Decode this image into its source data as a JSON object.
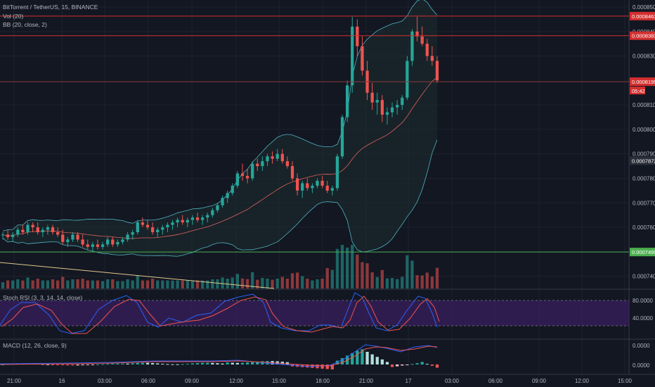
{
  "header": {
    "title": "BitTorrent / TetherUS, 15, BINANCE",
    "vol_label": "Vol (20)",
    "bb_label": "BB (20, close, 2)",
    "stoch_label": "Stoch RSI (3, 3, 14, 14, close)",
    "macd_label": "MACD (12, 26, close, 9)"
  },
  "colors": {
    "background": "#131722",
    "up": "#26a69a",
    "down": "#ef5350",
    "resistance_line": "#d32f2f",
    "support_line": "#4caf50",
    "bb_band": "#4fb3bf",
    "bb_basis": "#e0605a",
    "stoch_k": "#2962ff",
    "stoch_d": "#ef5350",
    "stoch_fill": "#3a1f5d",
    "macd_line": "#2962ff",
    "signal_line": "#ef5350",
    "trend_line": "#e0c88a"
  },
  "chart_data": {
    "type": "candlestick",
    "price_axis": [
      "0.0008500",
      "0.0008400",
      "0.0008300",
      "0.0008100",
      "0.0008000",
      "0.0007900",
      "0.0007800",
      "0.0007700",
      "0.0007600",
      "0.0007400"
    ],
    "stoch_axis": [
      "80.0000",
      "40.0000"
    ],
    "macd_axis": [
      "0.0000",
      "0.0000"
    ],
    "time_axis": [
      "21:00",
      "16",
      "03:00",
      "06:00",
      "09:00",
      "12:00",
      "15:00",
      "18:00",
      "21:00",
      "17",
      "03:00",
      "06:00",
      "09:00",
      "12:00",
      "15:00"
    ],
    "price_tags": [
      {
        "label": "0.0008463",
        "value": 0.0008463,
        "kind": "resistance"
      },
      {
        "label": "0.0008383",
        "value": 0.0008383,
        "kind": "resistance"
      },
      {
        "label": "0.0008195",
        "value": 0.0008195,
        "kind": "current"
      },
      {
        "label": "05:42",
        "kind": "countdown"
      },
      {
        "label": "0.0007872",
        "value": 0.0007872,
        "kind": "marker"
      },
      {
        "label": "0.0007499",
        "value": 0.0007499,
        "kind": "support"
      }
    ],
    "series_ohlc_approx": [
      [
        0.000757,
        0.000758,
        0.000755,
        0.000757
      ],
      [
        0.000757,
        0.000759,
        0.000755,
        0.000756
      ],
      [
        0.000756,
        0.000758,
        0.000754,
        0.000757
      ],
      [
        0.000757,
        0.00076,
        0.000756,
        0.000759
      ],
      [
        0.000759,
        0.000761,
        0.000757,
        0.000758
      ],
      [
        0.000758,
        0.000762,
        0.000757,
        0.000761
      ],
      [
        0.000761,
        0.000762,
        0.000758,
        0.00076
      ],
      [
        0.00076,
        0.000762,
        0.000757,
        0.000758
      ],
      [
        0.000758,
        0.00076,
        0.000756,
        0.000759
      ],
      [
        0.000759,
        0.000761,
        0.000757,
        0.00076
      ],
      [
        0.00076,
        0.000761,
        0.000757,
        0.000758
      ],
      [
        0.000758,
        0.00076,
        0.000756,
        0.000757
      ],
      [
        0.000757,
        0.000759,
        0.000753,
        0.000754
      ],
      [
        0.000754,
        0.000756,
        0.000752,
        0.000755
      ],
      [
        0.000755,
        0.000758,
        0.000754,
        0.000757
      ],
      [
        0.000757,
        0.000758,
        0.000754,
        0.000755
      ],
      [
        0.000755,
        0.000757,
        0.000752,
        0.000753
      ],
      [
        0.000753,
        0.000755,
        0.000751,
        0.000752
      ],
      [
        0.000752,
        0.000754,
        0.00075,
        0.000753
      ],
      [
        0.000753,
        0.000755,
        0.000751,
        0.000752
      ],
      [
        0.000752,
        0.000754,
        0.000751,
        0.000753
      ],
      [
        0.000753,
        0.000756,
        0.000752,
        0.000755
      ],
      [
        0.000755,
        0.000756,
        0.000752,
        0.000753
      ],
      [
        0.000753,
        0.000755,
        0.000752,
        0.000754
      ],
      [
        0.000754,
        0.000756,
        0.000753,
        0.000755
      ],
      [
        0.000755,
        0.000758,
        0.000754,
        0.000757
      ],
      [
        0.000757,
        0.000759,
        0.000755,
        0.000758
      ],
      [
        0.000758,
        0.000763,
        0.000757,
        0.000762
      ],
      [
        0.000762,
        0.000764,
        0.00076,
        0.000761
      ],
      [
        0.000761,
        0.000763,
        0.000759,
        0.00076
      ],
      [
        0.00076,
        0.000762,
        0.000757,
        0.000758
      ],
      [
        0.000758,
        0.00076,
        0.000756,
        0.000759
      ],
      [
        0.000759,
        0.000761,
        0.000757,
        0.00076
      ],
      [
        0.00076,
        0.000762,
        0.000758,
        0.000761
      ],
      [
        0.000761,
        0.000763,
        0.000759,
        0.000762
      ],
      [
        0.000762,
        0.000764,
        0.00076,
        0.000763
      ],
      [
        0.000763,
        0.000765,
        0.000761,
        0.000762
      ],
      [
        0.000762,
        0.000764,
        0.00076,
        0.000763
      ],
      [
        0.000763,
        0.000765,
        0.000761,
        0.000764
      ],
      [
        0.000764,
        0.000766,
        0.000762,
        0.000763
      ],
      [
        0.000763,
        0.000765,
        0.000761,
        0.000764
      ],
      [
        0.000764,
        0.000766,
        0.000762,
        0.000765
      ],
      [
        0.000765,
        0.000768,
        0.000764,
        0.000767
      ],
      [
        0.000767,
        0.00077,
        0.000766,
        0.000769
      ],
      [
        0.000769,
        0.000773,
        0.000768,
        0.000772
      ],
      [
        0.000772,
        0.000775,
        0.00077,
        0.000774
      ],
      [
        0.000774,
        0.000778,
        0.000773,
        0.000777
      ],
      [
        0.000777,
        0.000783,
        0.000776,
        0.000782
      ],
      [
        0.000782,
        0.000786,
        0.000779,
        0.000781
      ],
      [
        0.000781,
        0.000784,
        0.000778,
        0.00078
      ],
      [
        0.00078,
        0.000787,
        0.000779,
        0.000786
      ],
      [
        0.000786,
        0.000788,
        0.000783,
        0.000785
      ],
      [
        0.000785,
        0.000789,
        0.000783,
        0.000787
      ],
      [
        0.000787,
        0.00079,
        0.000785,
        0.000789
      ],
      [
        0.000789,
        0.000791,
        0.000786,
        0.000788
      ],
      [
        0.000788,
        0.000792,
        0.000787,
        0.00079
      ],
      [
        0.00079,
        0.000792,
        0.000786,
        0.000787
      ],
      [
        0.000787,
        0.000789,
        0.000784,
        0.000785
      ],
      [
        0.000785,
        0.000787,
        0.000779,
        0.00078
      ],
      [
        0.00078,
        0.000782,
        0.000773,
        0.000775
      ],
      [
        0.000775,
        0.000779,
        0.000772,
        0.000778
      ],
      [
        0.000778,
        0.00078,
        0.000775,
        0.000776
      ],
      [
        0.000776,
        0.000778,
        0.000774,
        0.000777
      ],
      [
        0.000777,
        0.00078,
        0.000776,
        0.000779
      ],
      [
        0.000779,
        0.000781,
        0.000776,
        0.000777
      ],
      [
        0.000777,
        0.000779,
        0.000774,
        0.000775
      ],
      [
        0.000775,
        0.000777,
        0.000773,
        0.000776
      ],
      [
        0.000776,
        0.00079,
        0.000775,
        0.000789
      ],
      [
        0.000789,
        0.000806,
        0.000788,
        0.000805
      ],
      [
        0.000805,
        0.00082,
        0.000803,
        0.000818
      ],
      [
        0.000818,
        0.000846,
        0.000815,
        0.000842
      ],
      [
        0.000842,
        0.000845,
        0.00083,
        0.000834
      ],
      [
        0.000834,
        0.000838,
        0.000822,
        0.000824
      ],
      [
        0.000824,
        0.000828,
        0.000812,
        0.000815
      ],
      [
        0.000815,
        0.000819,
        0.000808,
        0.000811
      ],
      [
        0.000811,
        0.000815,
        0.000806,
        0.000812
      ],
      [
        0.000812,
        0.000814,
        0.000803,
        0.000806
      ],
      [
        0.000806,
        0.000809,
        0.000802,
        0.000807
      ],
      [
        0.000807,
        0.000811,
        0.000805,
        0.000809
      ],
      [
        0.000809,
        0.000812,
        0.000806,
        0.00081
      ],
      [
        0.00081,
        0.000814,
        0.000808,
        0.000813
      ],
      [
        0.000813,
        0.00083,
        0.000812,
        0.000828
      ],
      [
        0.000828,
        0.000841,
        0.000826,
        0.00084
      ],
      [
        0.00084,
        0.000846,
        0.000836,
        0.000838
      ],
      [
        0.000838,
        0.000842,
        0.000834,
        0.000835
      ],
      [
        0.000835,
        0.000837,
        0.000828,
        0.00083
      ],
      [
        0.00083,
        0.000834,
        0.000826,
        0.000828
      ],
      [
        0.000828,
        0.00083,
        0.000819,
        0.00082
      ]
    ]
  }
}
